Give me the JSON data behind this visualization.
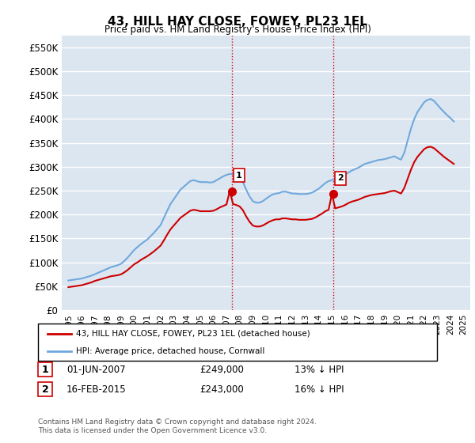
{
  "title": "43, HILL HAY CLOSE, FOWEY, PL23 1EL",
  "subtitle": "Price paid vs. HM Land Registry's House Price Index (HPI)",
  "ylim": [
    0,
    575000
  ],
  "yticks": [
    0,
    50000,
    100000,
    150000,
    200000,
    250000,
    300000,
    350000,
    400000,
    450000,
    500000,
    550000
  ],
  "ytick_labels": [
    "£0",
    "£50K",
    "£100K",
    "£150K",
    "£200K",
    "£250K",
    "£300K",
    "£350K",
    "£400K",
    "£450K",
    "£500K",
    "£550K"
  ],
  "hpi_color": "#6fa8dc",
  "price_color": "#cc0000",
  "vline_color": "#cc0000",
  "vline_style": ":",
  "bg_color": "#dce6f1",
  "grid_color": "#ffffff",
  "sale1_date": "2007-06-01",
  "sale1_price": 249000,
  "sale1_label": "1",
  "sale2_date": "2015-02-16",
  "sale2_price": 243000,
  "sale2_label": "2",
  "legend_house": "43, HILL HAY CLOSE, FOWEY, PL23 1EL (detached house)",
  "legend_hpi": "HPI: Average price, detached house, Cornwall",
  "table_row1": [
    "1",
    "01-JUN-2007",
    "£249,000",
    "13% ↓ HPI"
  ],
  "table_row2": [
    "2",
    "16-FEB-2015",
    "£243,000",
    "16% ↓ HPI"
  ],
  "footnote": "Contains HM Land Registry data © Crown copyright and database right 2024.\nThis data is licensed under the Open Government Licence v3.0.",
  "hpi_data_x": [
    1995.0,
    1995.25,
    1995.5,
    1995.75,
    1996.0,
    1996.25,
    1996.5,
    1996.75,
    1997.0,
    1997.25,
    1997.5,
    1997.75,
    1998.0,
    1998.25,
    1998.5,
    1998.75,
    1999.0,
    1999.25,
    1999.5,
    1999.75,
    2000.0,
    2000.25,
    2000.5,
    2000.75,
    2001.0,
    2001.25,
    2001.5,
    2001.75,
    2002.0,
    2002.25,
    2002.5,
    2002.75,
    2003.0,
    2003.25,
    2003.5,
    2003.75,
    2004.0,
    2004.25,
    2004.5,
    2004.75,
    2005.0,
    2005.25,
    2005.5,
    2005.75,
    2006.0,
    2006.25,
    2006.5,
    2006.75,
    2007.0,
    2007.25,
    2007.5,
    2007.75,
    2008.0,
    2008.25,
    2008.5,
    2008.75,
    2009.0,
    2009.25,
    2009.5,
    2009.75,
    2010.0,
    2010.25,
    2010.5,
    2010.75,
    2011.0,
    2011.25,
    2011.5,
    2011.75,
    2012.0,
    2012.25,
    2012.5,
    2012.75,
    2013.0,
    2013.25,
    2013.5,
    2013.75,
    2014.0,
    2014.25,
    2014.5,
    2014.75,
    2015.0,
    2015.25,
    2015.5,
    2015.75,
    2016.0,
    2016.25,
    2016.5,
    2016.75,
    2017.0,
    2017.25,
    2017.5,
    2017.75,
    2018.0,
    2018.25,
    2018.5,
    2018.75,
    2019.0,
    2019.25,
    2019.5,
    2019.75,
    2020.0,
    2020.25,
    2020.5,
    2020.75,
    2021.0,
    2021.25,
    2021.5,
    2021.75,
    2022.0,
    2022.25,
    2022.5,
    2022.75,
    2023.0,
    2023.25,
    2023.5,
    2023.75,
    2024.0,
    2024.25
  ],
  "hpi_data_y": [
    62000,
    63000,
    64000,
    65000,
    66000,
    68000,
    70000,
    72000,
    75000,
    78000,
    81000,
    84000,
    87000,
    90000,
    92000,
    94000,
    97000,
    103000,
    110000,
    118000,
    126000,
    132000,
    138000,
    143000,
    148000,
    155000,
    162000,
    170000,
    178000,
    193000,
    208000,
    222000,
    232000,
    242000,
    252000,
    258000,
    264000,
    270000,
    272000,
    270000,
    268000,
    268000,
    268000,
    267000,
    268000,
    272000,
    276000,
    280000,
    283000,
    285000,
    285000,
    282000,
    278000,
    268000,
    252000,
    238000,
    228000,
    225000,
    225000,
    228000,
    233000,
    238000,
    242000,
    244000,
    245000,
    248000,
    248000,
    246000,
    244000,
    244000,
    243000,
    243000,
    243000,
    244000,
    246000,
    250000,
    254000,
    260000,
    266000,
    270000,
    272000,
    274000,
    277000,
    280000,
    283000,
    288000,
    292000,
    295000,
    298000,
    302000,
    306000,
    308000,
    310000,
    312000,
    314000,
    315000,
    316000,
    318000,
    320000,
    322000,
    318000,
    315000,
    330000,
    355000,
    380000,
    400000,
    415000,
    425000,
    435000,
    440000,
    442000,
    438000,
    430000,
    422000,
    415000,
    408000,
    402000,
    395000
  ],
  "price_data_x": [
    1995.0,
    1995.25,
    1995.5,
    1995.75,
    1996.0,
    1996.25,
    1996.5,
    1996.75,
    1997.0,
    1997.25,
    1997.5,
    1997.75,
    1998.0,
    1998.25,
    1998.5,
    1998.75,
    1999.0,
    1999.25,
    1999.5,
    1999.75,
    2000.0,
    2000.25,
    2000.5,
    2000.75,
    2001.0,
    2001.25,
    2001.5,
    2001.75,
    2002.0,
    2002.25,
    2002.5,
    2002.75,
    2003.0,
    2003.25,
    2003.5,
    2003.75,
    2004.0,
    2004.25,
    2004.5,
    2004.75,
    2005.0,
    2005.25,
    2005.5,
    2005.75,
    2006.0,
    2006.25,
    2006.5,
    2006.75,
    2007.0,
    2007.25,
    2007.5,
    2007.75,
    2008.0,
    2008.25,
    2008.5,
    2008.75,
    2009.0,
    2009.25,
    2009.5,
    2009.75,
    2010.0,
    2010.25,
    2010.5,
    2010.75,
    2011.0,
    2011.25,
    2011.5,
    2011.75,
    2012.0,
    2012.25,
    2012.5,
    2012.75,
    2013.0,
    2013.25,
    2013.5,
    2013.75,
    2014.0,
    2014.25,
    2014.5,
    2014.75,
    2015.0,
    2015.25,
    2015.5,
    2015.75,
    2016.0,
    2016.25,
    2016.5,
    2016.75,
    2017.0,
    2017.25,
    2017.5,
    2017.75,
    2018.0,
    2018.25,
    2018.5,
    2018.75,
    2019.0,
    2019.25,
    2019.5,
    2019.75,
    2020.0,
    2020.25,
    2020.5,
    2020.75,
    2021.0,
    2021.25,
    2021.5,
    2021.75,
    2022.0,
    2022.25,
    2022.5,
    2022.75,
    2023.0,
    2023.25,
    2023.5,
    2023.75,
    2024.0,
    2024.25
  ],
  "price_data_y": [
    48000,
    49000,
    50000,
    51000,
    52000,
    54000,
    56000,
    58000,
    61000,
    63000,
    65000,
    67000,
    69000,
    71000,
    72000,
    73000,
    75000,
    79000,
    84000,
    90000,
    96000,
    100000,
    105000,
    109000,
    113000,
    118000,
    123000,
    129000,
    135000,
    146000,
    158000,
    169000,
    177000,
    185000,
    193000,
    198000,
    203000,
    208000,
    210000,
    209000,
    207000,
    207000,
    207000,
    207000,
    208000,
    211000,
    215000,
    218000,
    221000,
    249000,
    222000,
    220000,
    217000,
    209000,
    196000,
    185000,
    177000,
    175000,
    175000,
    177000,
    181000,
    185000,
    188000,
    190000,
    190000,
    192000,
    192000,
    191000,
    190000,
    190000,
    189000,
    189000,
    189000,
    190000,
    191000,
    194000,
    198000,
    202000,
    207000,
    210000,
    243000,
    213000,
    215000,
    217000,
    220000,
    224000,
    227000,
    229000,
    231000,
    234000,
    237000,
    239000,
    241000,
    242000,
    243000,
    244000,
    245000,
    247000,
    249000,
    250000,
    247000,
    244000,
    256000,
    275000,
    294000,
    310000,
    321000,
    329000,
    337000,
    341000,
    342000,
    339000,
    333000,
    327000,
    321000,
    316000,
    311000,
    306000
  ]
}
